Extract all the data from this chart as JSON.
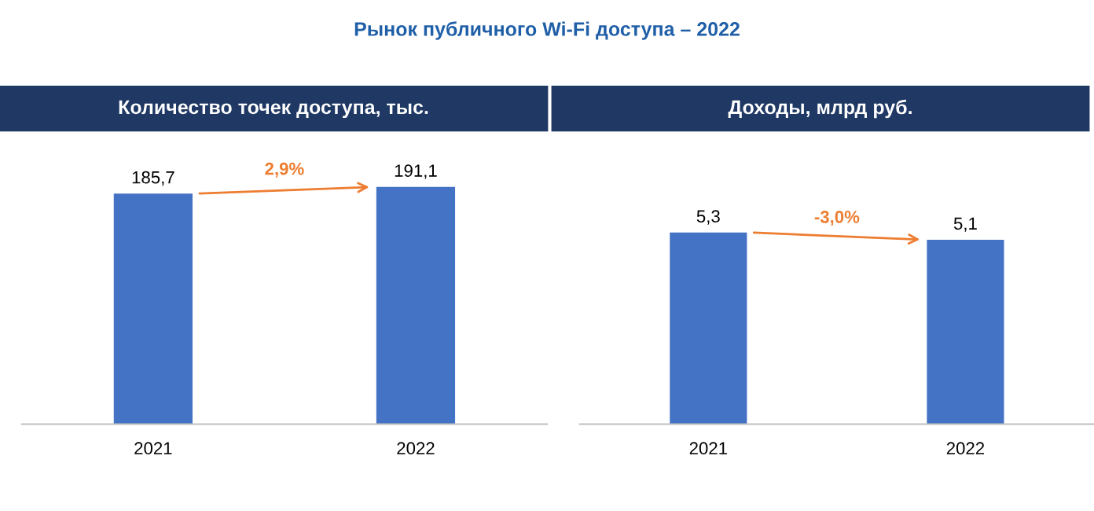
{
  "chart_data": [
    {
      "type": "bar",
      "title": "Количество точек доступа, тыс.",
      "categories": [
        "2021",
        "2022"
      ],
      "values": [
        185.7,
        191.1
      ],
      "value_labels": [
        "185,7",
        "191,1"
      ],
      "color": "#4472c4",
      "annotations": [
        "Рынок публичного Wi-Fi доступа – 2022",
        "2,9%"
      ],
      "grid": false,
      "legend": false
    },
    {
      "type": "bar",
      "title": "Доходы, млрд руб.",
      "categories": [
        "2021",
        "2022"
      ],
      "values": [
        5.3,
        5.1
      ],
      "value_labels": [
        "5,3",
        "5,1"
      ],
      "color": "#4472c4",
      "annotations": [
        "-3,0%"
      ],
      "grid": false,
      "legend": false
    }
  ]
}
